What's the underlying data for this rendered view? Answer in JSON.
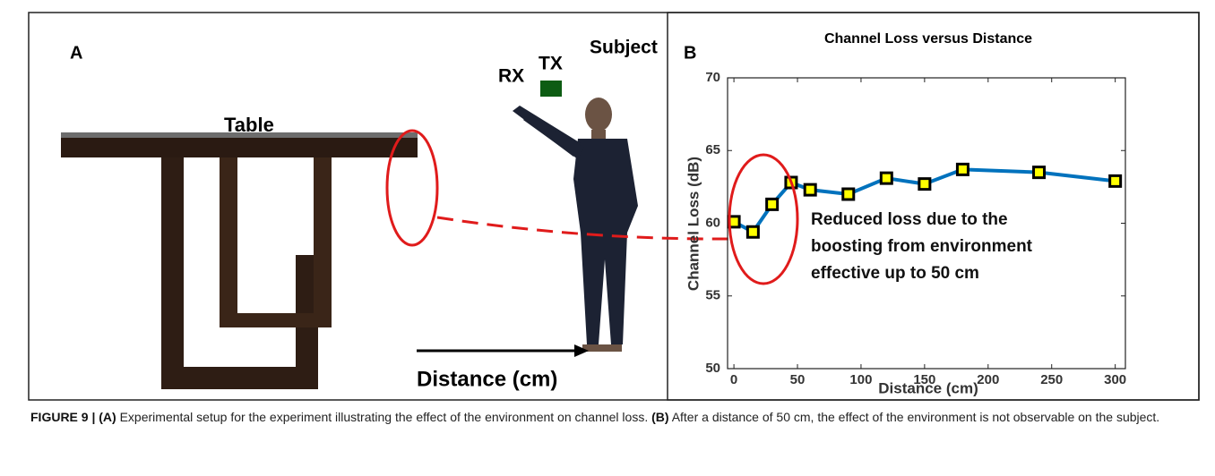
{
  "panel_a": {
    "label": "A",
    "table_label": "Table",
    "rx_label": "RX",
    "tx_label": "TX",
    "subject_label": "Subject",
    "distance_label": "Distance (cm)"
  },
  "chart_data": {
    "type": "line",
    "panel_label": "B",
    "title": "Channel Loss versus Distance",
    "xlabel": "Distance (cm)",
    "ylabel": "Channel Loss (dB)",
    "x": [
      0,
      15,
      30,
      45,
      60,
      90,
      120,
      150,
      180,
      240,
      300
    ],
    "values": [
      60.1,
      59.4,
      61.3,
      62.8,
      62.3,
      62.0,
      63.1,
      62.7,
      63.7,
      63.5,
      62.9
    ],
    "color": "#0072bd",
    "marker_color": "#ffff00",
    "xlim": [
      -5,
      308
    ],
    "xticks": [
      0,
      50,
      100,
      150,
      200,
      250,
      300
    ],
    "ylim": [
      50,
      70
    ],
    "yticks": [
      50,
      55,
      60,
      65,
      70
    ],
    "annotation": [
      "Reduced loss due to the",
      "boosting from environment",
      "effective up to 50 cm"
    ]
  },
  "caption": {
    "figure_label": "FIGURE 9 |",
    "part_a": "(A)",
    "text_a": "Experimental setup for the experiment illustrating the effect of the environment on channel loss.",
    "part_b": "(B)",
    "text_b": "After a distance of 50 cm, the effect of the environment is not observable on the subject."
  }
}
